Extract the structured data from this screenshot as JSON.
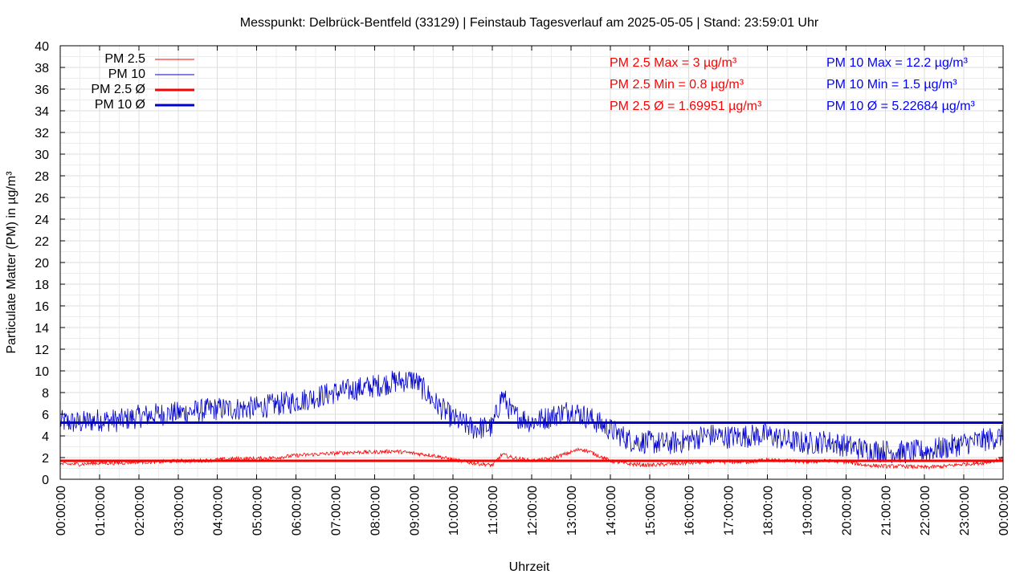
{
  "chart_data": {
    "type": "line",
    "title": "Messpunkt: Delbrück-Bentfeld (33129) | Feinstaub Tagesverlauf am 2025-05-05 | Stand: 23:59:01 Uhr",
    "xlabel": "Uhrzeit",
    "ylabel": "Particulate Matter (PM) in µg/m³",
    "ylim": [
      0,
      40
    ],
    "y_ticks": [
      "0",
      "2",
      "4",
      "6",
      "8",
      "10",
      "12",
      "14",
      "16",
      "18",
      "20",
      "22",
      "24",
      "26",
      "28",
      "30",
      "32",
      "34",
      "36",
      "38",
      "40"
    ],
    "x_ticks": [
      "00:00:00",
      "01:00:00",
      "02:00:00",
      "03:00:00",
      "04:00:00",
      "05:00:00",
      "06:00:00",
      "07:00:00",
      "08:00:00",
      "09:00:00",
      "10:00:00",
      "11:00:00",
      "12:00:00",
      "13:00:00",
      "14:00:00",
      "15:00:00",
      "16:00:00",
      "17:00:00",
      "18:00:00",
      "19:00:00",
      "20:00:00",
      "21:00:00",
      "22:00:00",
      "23:00:00",
      "00:00:00"
    ],
    "grid": true,
    "legend_position": "top-left",
    "legend": [
      {
        "label": "PM 2.5",
        "color": "#ff0000",
        "style": "thin"
      },
      {
        "label": "PM 10",
        "color": "#0000cc",
        "style": "thin"
      },
      {
        "label": "PM 2.5 Ø",
        "color": "#ff0000",
        "style": "thick"
      },
      {
        "label": "PM 10 Ø",
        "color": "#0000cc",
        "style": "thick"
      }
    ],
    "annotations": {
      "pm25": [
        "PM 2.5 Max = 3 µg/m³",
        "PM 2.5 Min = 0.8 µg/m³",
        "PM 2.5 Ø = 1.69951 µg/m³"
      ],
      "pm10": [
        "PM 10 Max = 12.2 µg/m³",
        "PM 10 Min = 1.5 µg/m³",
        "PM 10 Ø = 5.22684 µg/m³"
      ]
    },
    "averages": {
      "pm25": 1.69951,
      "pm10": 5.22684
    },
    "series": [
      {
        "name": "PM 10",
        "color": "#0000cc",
        "x_hours": [
          0,
          0.5,
          1,
          1.5,
          2,
          2.5,
          3,
          3.5,
          4,
          4.5,
          5,
          5.5,
          6,
          6.5,
          7,
          7.5,
          8,
          8.5,
          9,
          9.25,
          9.5,
          10,
          10.5,
          11,
          11.25,
          11.5,
          12,
          12.5,
          13,
          13.5,
          14,
          14.5,
          15,
          15.5,
          16,
          16.5,
          17,
          17.5,
          18,
          18.5,
          19,
          19.5,
          20,
          20.5,
          21,
          21.5,
          22,
          22.5,
          23,
          23.5,
          24
        ],
        "values": [
          5.3,
          5.2,
          5.5,
          5.4,
          5.8,
          6.0,
          6.1,
          6.3,
          6.5,
          6.5,
          6.6,
          6.9,
          7.2,
          7.6,
          8.0,
          8.3,
          8.6,
          9.0,
          9.2,
          8.3,
          7.2,
          5.6,
          4.7,
          4.8,
          7.8,
          6.0,
          5.3,
          5.8,
          6.4,
          5.6,
          4.6,
          3.6,
          3.4,
          3.3,
          3.6,
          4.1,
          3.9,
          4.0,
          4.1,
          3.6,
          3.3,
          3.5,
          3.1,
          2.7,
          2.6,
          2.5,
          2.6,
          2.9,
          3.3,
          3.6,
          4.0
        ]
      },
      {
        "name": "PM 2.5",
        "color": "#ff0000",
        "x_hours": [
          0,
          0.5,
          1,
          1.5,
          2,
          2.5,
          3,
          3.5,
          4,
          4.5,
          5,
          5.5,
          6,
          6.5,
          7,
          7.5,
          8,
          8.5,
          9,
          9.5,
          10,
          10.5,
          11,
          11.25,
          11.5,
          12,
          12.5,
          13,
          13.25,
          13.5,
          14,
          14.5,
          15,
          15.5,
          16,
          16.5,
          17,
          17.5,
          18,
          18.5,
          19,
          19.5,
          20,
          20.5,
          21,
          21.5,
          22,
          22.5,
          23,
          23.5,
          24
        ],
        "values": [
          1.4,
          1.4,
          1.5,
          1.5,
          1.6,
          1.6,
          1.7,
          1.7,
          1.8,
          1.9,
          1.9,
          2.0,
          2.2,
          2.3,
          2.4,
          2.5,
          2.5,
          2.6,
          2.4,
          2.2,
          1.8,
          1.5,
          1.3,
          2.3,
          2.0,
          1.7,
          1.9,
          2.5,
          2.8,
          2.5,
          1.7,
          1.4,
          1.3,
          1.4,
          1.5,
          1.6,
          1.6,
          1.6,
          1.8,
          1.7,
          1.6,
          1.7,
          1.6,
          1.3,
          1.2,
          1.2,
          1.1,
          1.2,
          1.4,
          1.5,
          1.9
        ]
      }
    ]
  }
}
